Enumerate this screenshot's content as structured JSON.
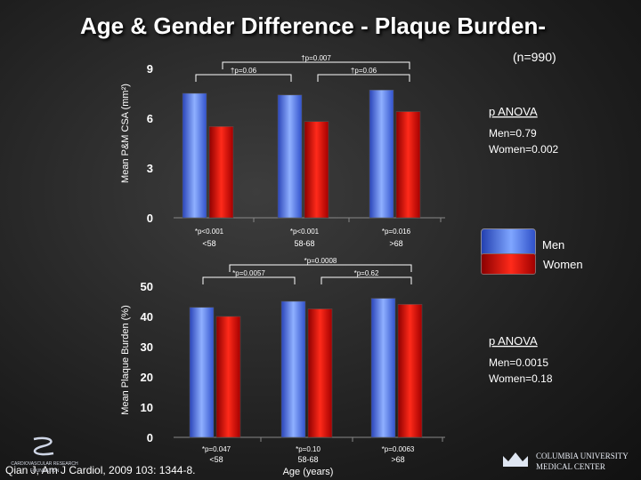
{
  "slide": {
    "title": "Age & Gender Difference - Plaque Burden-",
    "n_label": "(n=990)",
    "citation": "Qian J, Am J Cardiol, 2009 103: 1344-8.",
    "logo_left_text": "CARDIOVASCULAR RESEARCH FOUNDATION",
    "logo_right_line1": "COLUMBIA UNIVERSITY",
    "logo_right_line2": "MEDICAL CENTER"
  },
  "legend": {
    "men_label": "Men",
    "women_label": "Women",
    "men_color": "#4a72f0",
    "women_color": "#ee1b12"
  },
  "chart_data": [
    {
      "type": "bar",
      "ylabel": "Mean P&M CSA (mm²)",
      "ylim": [
        0,
        9
      ],
      "yticks": [
        0,
        3,
        6,
        9
      ],
      "categories": [
        "<58",
        "58-68",
        ">68"
      ],
      "series": [
        {
          "name": "Men",
          "values": [
            7.5,
            7.4,
            7.7
          ]
        },
        {
          "name": "Women",
          "values": [
            5.5,
            5.8,
            6.4
          ]
        }
      ],
      "pair_labels": [
        "*p<0.001",
        "*p<0.001",
        "*p=0.016"
      ],
      "top_brackets": [
        {
          "label": "†p=0.06",
          "from": 0,
          "to": 1,
          "series": "Men"
        },
        {
          "label": "†p=0.06",
          "from": 1,
          "to": 2,
          "series": "Women"
        },
        {
          "label": "†p=0.007",
          "from": 0,
          "to": 2,
          "series": "Women"
        }
      ],
      "anova": {
        "title": "p ANOVA",
        "men": "Men=0.79",
        "women": "Women=0.002"
      }
    },
    {
      "type": "bar",
      "ylabel": "Mean Plaque Burden (%)",
      "ylim": [
        0,
        50
      ],
      "yticks": [
        0,
        10,
        20,
        30,
        40,
        50
      ],
      "categories": [
        "<58",
        "58-68",
        ">68"
      ],
      "xlabel": "Age (years)",
      "series": [
        {
          "name": "Men",
          "values": [
            43.0,
            45.0,
            46.0
          ]
        },
        {
          "name": "Women",
          "values": [
            40.0,
            42.5,
            44.0
          ]
        }
      ],
      "pair_labels": [
        "*p=0.047",
        "*p=0.10",
        "*p=0.0063"
      ],
      "top_brackets": [
        {
          "label": "*p=0.0057",
          "from": 0,
          "to": 1,
          "series": "Men"
        },
        {
          "label": "*p=0.62",
          "from": 1,
          "to": 2,
          "series": "Women"
        },
        {
          "label": "*p=0.0008",
          "from": 0,
          "to": 2,
          "series": "Women"
        }
      ],
      "anova": {
        "title": "p ANOVA",
        "men": "Men=0.0015",
        "women": "Women=0.18"
      }
    }
  ]
}
